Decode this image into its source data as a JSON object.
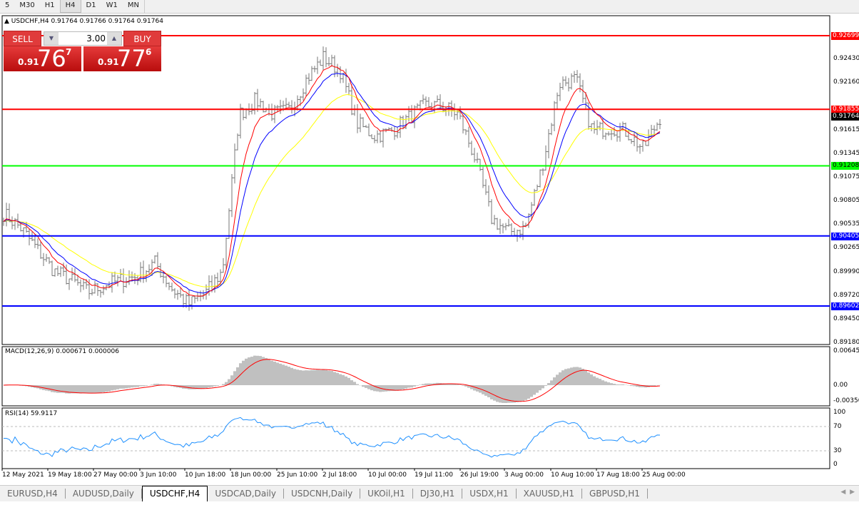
{
  "timeframes": [
    "5",
    "M30",
    "H1",
    "H4",
    "D1",
    "W1",
    "MN"
  ],
  "active_timeframe": "H4",
  "chart": {
    "header": "USDCHF,H4  0.91764 0.91766 0.91764 0.91764"
  },
  "trade_panel": {
    "sell_label": "SELL",
    "buy_label": "BUY",
    "lots": "3.00",
    "sell_prefix": "0.91",
    "sell_big": "76",
    "sell_sup": "7",
    "buy_prefix": "0.91",
    "buy_big": "77",
    "buy_sup": "6"
  },
  "price_axis": [
    "0.92430",
    "0.92160",
    "0.91615",
    "0.91345",
    "0.91075",
    "0.90805",
    "0.90535",
    "0.90265",
    "0.89990",
    "0.89720",
    "0.89450",
    "0.89180"
  ],
  "hlines": [
    {
      "price": "0.92699",
      "color": "#ff0000"
    },
    {
      "price": "0.91855",
      "color": "#ff0000"
    },
    {
      "price": "0.91208",
      "color": "#00ff00"
    },
    {
      "price": "0.90405",
      "color": "#0000ff"
    },
    {
      "price": "0.89602",
      "color": "#0000ff"
    }
  ],
  "current_price": "0.91764",
  "closes": [
    0.9066,
    0.905,
    0.9025,
    0.9,
    0.899,
    0.8976,
    0.8984,
    0.899,
    0.8995,
    0.901,
    0.898,
    0.8962,
    0.8975,
    0.9,
    0.918,
    0.9196,
    0.918,
    0.9185,
    0.922,
    0.9245,
    0.923,
    0.917,
    0.9155,
    0.916,
    0.9175,
    0.919,
    0.919,
    0.918,
    0.913,
    0.906,
    0.9045,
    0.905,
    0.912,
    0.9215,
    0.922,
    0.916,
    0.9165,
    0.916,
    0.914,
    0.9176
  ],
  "macd": {
    "label": "MACD(12,26,9) 0.000671 0.000006",
    "axis": [
      "0.00645",
      "0.00",
      "-0.00350"
    ]
  },
  "rsi": {
    "label": "RSI(14) 59.9117",
    "axis": [
      "100",
      "70",
      "30",
      "0"
    ]
  },
  "time_axis": [
    "12 May 2021",
    "19 May 18:00",
    "27 May 00:00",
    "3 Jun 10:00",
    "10 Jun 18:00",
    "18 Jun 00:00",
    "25 Jun 10:00",
    "2 Jul 18:00",
    "10 Jul 00:00",
    "19 Jul 11:00",
    "26 Jul 19:00",
    "3 Aug 00:00",
    "10 Aug 10:00",
    "17 Aug 18:00",
    "25 Aug 00:00"
  ],
  "tabs": [
    "EURUSD,H4",
    "AUDUSD,Daily",
    "USDCHF,H4",
    "USDCAD,Daily",
    "USDCNH,Daily",
    "UKOil,H1",
    "DJ30,H1",
    "USDX,H1",
    "XAUUSD,H1",
    "GBPUSD,H1"
  ],
  "active_tab": "USDCHF,H4"
}
